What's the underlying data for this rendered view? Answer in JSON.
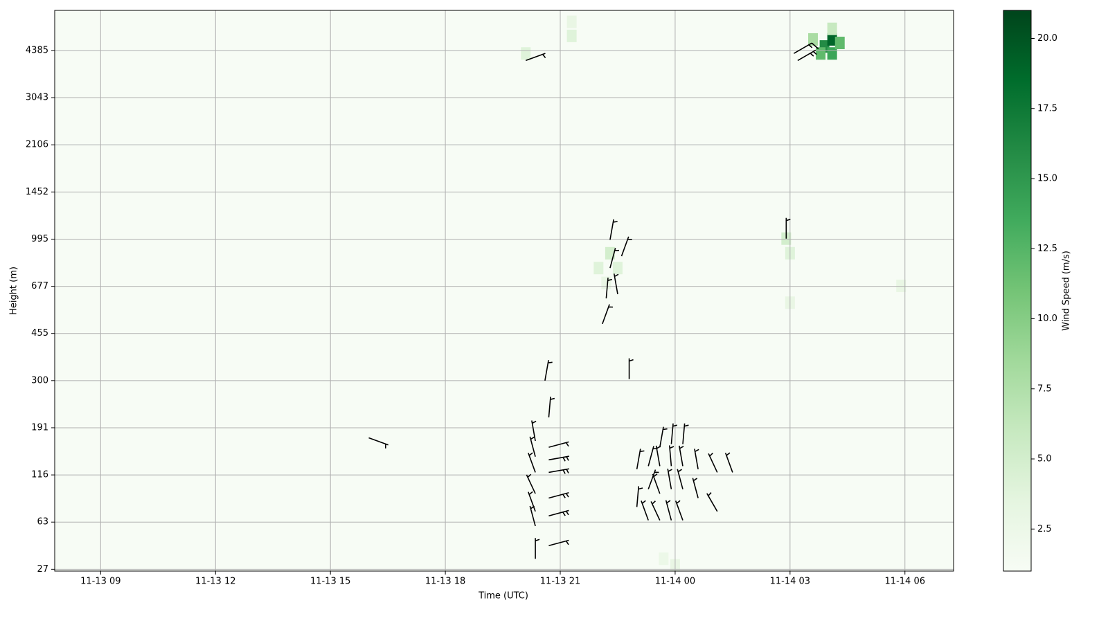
{
  "chart_data": {
    "type": "heatmap-barbs",
    "x_label": "Time (UTC)",
    "y_label": "Height (m)",
    "colorbar_label": "Wind Speed (m/s)",
    "xlim": [
      7.8,
      31.27
    ],
    "xticks": [
      {
        "value": 9,
        "label": "11-13 09"
      },
      {
        "value": 12,
        "label": "11-13 12"
      },
      {
        "value": 15,
        "label": "11-13 15"
      },
      {
        "value": 18,
        "label": "11-13 18"
      },
      {
        "value": 21,
        "label": "11-13 21"
      },
      {
        "value": 24,
        "label": "11-14 00"
      },
      {
        "value": 27,
        "label": "11-14 03"
      },
      {
        "value": 30,
        "label": "11-14 06"
      }
    ],
    "ylim": [
      25.6,
      5526
    ],
    "yticks": [
      27,
      63,
      116,
      191,
      300,
      455,
      677,
      995,
      1452,
      2106,
      3043,
      4385
    ],
    "grid": true,
    "clim": [
      1,
      21
    ],
    "cticks": [
      2.5,
      {
        "value": 5,
        "label": "5.0"
      },
      7.5,
      {
        "value": 10,
        "label": "10.0"
      },
      12.5,
      {
        "value": 15,
        "label": "15.0"
      },
      17.5,
      {
        "value": 20,
        "label": "20.0"
      }
    ],
    "colormap": [
      "#f7fcf5",
      "#e5f5e0",
      "#c7e9c0",
      "#a1d99b",
      "#74c476",
      "#41ab5d",
      "#238b45",
      "#006d2c",
      "#00441b"
    ],
    "cells": [
      [
        20.1,
        4300,
        4
      ],
      [
        21.3,
        5200,
        3
      ],
      [
        21.3,
        4800,
        4
      ],
      [
        22.0,
        800,
        4
      ],
      [
        22.3,
        900,
        5
      ],
      [
        22.5,
        800,
        4
      ],
      [
        22.2,
        700,
        3
      ],
      [
        26.9,
        1000,
        5
      ],
      [
        27.0,
        900,
        4
      ],
      [
        27.0,
        600,
        3
      ],
      [
        27.9,
        4500,
        16
      ],
      [
        28.1,
        4700,
        19
      ],
      [
        27.8,
        4300,
        12
      ],
      [
        28.1,
        4300,
        14
      ],
      [
        28.3,
        4600,
        12
      ],
      [
        27.6,
        4700,
        8
      ],
      [
        28.1,
        5000,
        6
      ],
      [
        29.9,
        680,
        3
      ],
      [
        24.0,
        30,
        3
      ],
      [
        23.7,
        35,
        2.5
      ]
    ],
    "barbs": [
      [
        20.35,
        60,
        6,
        345
      ],
      [
        20.35,
        75,
        6,
        340
      ],
      [
        20.35,
        95,
        7,
        335
      ],
      [
        20.35,
        120,
        6,
        340
      ],
      [
        20.35,
        145,
        5,
        345
      ],
      [
        20.35,
        170,
        5,
        350
      ],
      [
        20.7,
        45,
        7,
        75
      ],
      [
        20.7,
        70,
        8,
        75
      ],
      [
        20.7,
        90,
        8,
        75
      ],
      [
        20.7,
        120,
        8,
        80
      ],
      [
        20.7,
        140,
        8,
        80
      ],
      [
        20.7,
        160,
        7,
        75
      ],
      [
        20.7,
        215,
        5,
        5
      ],
      [
        20.6,
        300,
        4,
        10
      ],
      [
        20.35,
        35,
        4,
        0
      ],
      [
        23.0,
        80,
        4,
        5
      ],
      [
        23.0,
        125,
        4,
        10
      ],
      [
        23.3,
        65,
        5,
        340
      ],
      [
        23.3,
        100,
        5,
        20
      ],
      [
        23.3,
        130,
        5,
        15
      ],
      [
        23.6,
        65,
        5,
        335
      ],
      [
        23.6,
        95,
        5,
        340
      ],
      [
        23.6,
        130,
        4,
        350
      ],
      [
        23.6,
        160,
        5,
        10
      ],
      [
        23.9,
        65,
        6,
        345
      ],
      [
        23.9,
        100,
        5,
        350
      ],
      [
        23.9,
        130,
        5,
        355
      ],
      [
        23.9,
        165,
        5,
        5
      ],
      [
        24.2,
        65,
        6,
        340
      ],
      [
        24.2,
        100,
        5,
        345
      ],
      [
        24.2,
        130,
        5,
        350
      ],
      [
        24.2,
        165,
        5,
        5
      ],
      [
        24.6,
        90,
        4,
        345
      ],
      [
        24.6,
        125,
        4,
        350
      ],
      [
        25.1,
        75,
        5,
        330
      ],
      [
        25.1,
        120,
        5,
        335
      ],
      [
        25.5,
        120,
        4,
        340
      ],
      [
        22.3,
        990,
        6,
        10
      ],
      [
        22.3,
        800,
        5,
        15
      ],
      [
        22.2,
        620,
        5,
        5
      ],
      [
        22.1,
        500,
        5,
        20
      ],
      [
        22.5,
        640,
        5,
        350
      ],
      [
        22.6,
        880,
        4,
        20
      ],
      [
        22.8,
        305,
        4,
        0
      ],
      [
        16.0,
        175,
        4,
        110
      ],
      [
        20.1,
        4100,
        5,
        70
      ],
      [
        26.9,
        1000,
        5,
        0
      ],
      [
        27.1,
        4300,
        17,
        60
      ],
      [
        27.2,
        4100,
        8,
        60
      ]
    ]
  }
}
